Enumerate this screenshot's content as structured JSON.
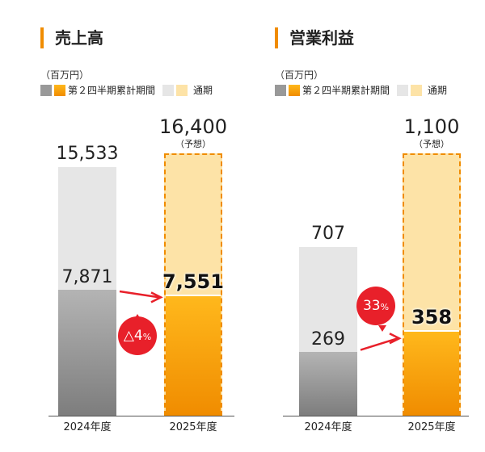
{
  "unit": "（百万円）",
  "legend": {
    "cumulative": "第２四半期累計期間",
    "full_year": "通期"
  },
  "colors": {
    "gray_top": "#b4b4b4",
    "gray_bottom": "#7d7d7d",
    "orange_top": "#ffb81c",
    "orange_bottom": "#f08c00",
    "gray_light": "#e6e6e6",
    "orange_light": "#fde3a7",
    "badge": "#e8202a"
  },
  "chart_data": [
    {
      "type": "bar",
      "title": "売上高",
      "categories": [
        "2024年度",
        "2025年度"
      ],
      "series": [
        {
          "name": "第２四半期累計期間",
          "values": [
            7871,
            7551
          ]
        },
        {
          "name": "通期",
          "values": [
            15533,
            16400
          ]
        }
      ],
      "labels": {
        "h1_2024": "7,871",
        "h1_2025": "7,551",
        "fy_2024": "15,533",
        "fy_2025": "16,400"
      },
      "forecast_note": "（予想）",
      "change_badge": {
        "symbol": "△4",
        "unit": "%"
      },
      "ymax": 16400
    },
    {
      "type": "bar",
      "title": "営業利益",
      "categories": [
        "2024年度",
        "2025年度"
      ],
      "series": [
        {
          "name": "第２四半期累計期間",
          "values": [
            269,
            358
          ]
        },
        {
          "name": "通期",
          "values": [
            707,
            1100
          ]
        }
      ],
      "labels": {
        "h1_2024": "269",
        "h1_2025": "358",
        "fy_2024": "707",
        "fy_2025": "1,100"
      },
      "forecast_note": "（予想）",
      "change_badge": {
        "symbol": "33",
        "unit": "%"
      },
      "ymax": 1100
    }
  ]
}
